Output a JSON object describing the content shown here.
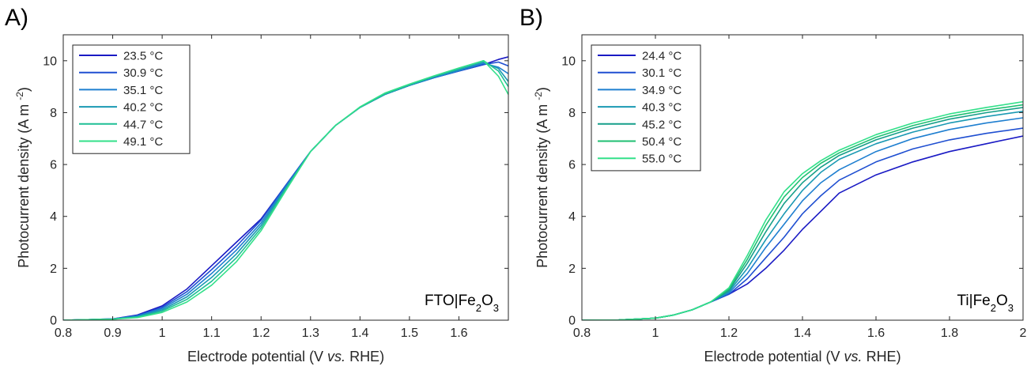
{
  "chart_data": [
    {
      "type": "line",
      "panel_label": "A)",
      "xlabel": "Electrode potential (V vs. RHE)",
      "ylabel": "Photocurrent density (A m-2)",
      "xlim": [
        0.8,
        1.7
      ],
      "ylim": [
        0,
        11
      ],
      "xticks": [
        "0.8",
        "0.9",
        "1",
        "1.1",
        "1.2",
        "1.3",
        "1.4",
        "1.5",
        "1.6"
      ],
      "xtick_values": [
        0.8,
        0.9,
        1.0,
        1.1,
        1.2,
        1.3,
        1.4,
        1.5,
        1.6
      ],
      "yticks": [
        "0",
        "2",
        "4",
        "6",
        "8",
        "10"
      ],
      "ytick_values": [
        0,
        2,
        4,
        6,
        8,
        10
      ],
      "annotation": "FTO|Fe2O3",
      "legend_position": "top-left",
      "grid": false,
      "x": [
        0.8,
        0.85,
        0.9,
        0.95,
        1.0,
        1.05,
        1.1,
        1.15,
        1.2,
        1.25,
        1.3,
        1.35,
        1.4,
        1.45,
        1.5,
        1.55,
        1.6,
        1.65,
        1.68,
        1.7
      ],
      "series": [
        {
          "name": "23.5 °C",
          "color": "#1a1ac4",
          "values": [
            0,
            0.02,
            0.05,
            0.2,
            0.55,
            1.2,
            2.1,
            3.0,
            3.9,
            5.2,
            6.5,
            7.5,
            8.2,
            8.7,
            9.05,
            9.35,
            9.6,
            9.85,
            10.05,
            10.15
          ]
        },
        {
          "name": "30.9 °C",
          "color": "#1f4fd1",
          "values": [
            0,
            0.02,
            0.05,
            0.18,
            0.5,
            1.1,
            1.95,
            2.85,
            3.85,
            5.2,
            6.5,
            7.5,
            8.2,
            8.7,
            9.05,
            9.35,
            9.6,
            9.85,
            9.95,
            9.8
          ]
        },
        {
          "name": "35.1 °C",
          "color": "#1f7fd0",
          "values": [
            0,
            0.02,
            0.05,
            0.16,
            0.45,
            1.0,
            1.8,
            2.7,
            3.75,
            5.15,
            6.5,
            7.5,
            8.2,
            8.7,
            9.05,
            9.35,
            9.62,
            9.9,
            9.75,
            9.5
          ]
        },
        {
          "name": "40.2 °C",
          "color": "#1a99b3",
          "values": [
            0,
            0.02,
            0.04,
            0.14,
            0.4,
            0.9,
            1.65,
            2.55,
            3.65,
            5.1,
            6.5,
            7.5,
            8.2,
            8.7,
            9.05,
            9.38,
            9.65,
            9.95,
            9.7,
            9.2
          ]
        },
        {
          "name": "44.7 °C",
          "color": "#1fbf95",
          "values": [
            0,
            0.02,
            0.04,
            0.12,
            0.35,
            0.8,
            1.5,
            2.4,
            3.55,
            5.05,
            6.5,
            7.5,
            8.2,
            8.72,
            9.08,
            9.4,
            9.7,
            10.0,
            9.6,
            9.0
          ]
        },
        {
          "name": "49.1 °C",
          "color": "#33e08a",
          "values": [
            0,
            0.02,
            0.04,
            0.1,
            0.3,
            0.7,
            1.35,
            2.25,
            3.45,
            5.0,
            6.5,
            7.5,
            8.22,
            8.75,
            9.1,
            9.42,
            9.72,
            10.0,
            9.4,
            8.7
          ]
        }
      ]
    },
    {
      "type": "line",
      "panel_label": "B)",
      "xlabel": "Electrode potential (V vs. RHE)",
      "ylabel": "Photocurrent density (A m-2)",
      "xlim": [
        0.8,
        2.0
      ],
      "ylim": [
        0,
        11
      ],
      "xticks": [
        "0.8",
        "1",
        "1.2",
        "1.4",
        "1.6",
        "1.8",
        "2"
      ],
      "xtick_values": [
        0.8,
        1.0,
        1.2,
        1.4,
        1.6,
        1.8,
        2.0
      ],
      "yticks": [
        "0",
        "2",
        "4",
        "6",
        "8",
        "10"
      ],
      "ytick_values": [
        0,
        2,
        4,
        6,
        8,
        10
      ],
      "annotation": "Ti|Fe2O3",
      "legend_position": "top-left",
      "grid": false,
      "x": [
        0.8,
        0.9,
        1.0,
        1.05,
        1.1,
        1.15,
        1.2,
        1.25,
        1.3,
        1.35,
        1.4,
        1.45,
        1.5,
        1.6,
        1.7,
        1.8,
        1.9,
        2.0
      ],
      "series": [
        {
          "name": "24.4 °C",
          "color": "#1a1ac4",
          "values": [
            0,
            0.01,
            0.08,
            0.2,
            0.4,
            0.7,
            1.0,
            1.4,
            2.0,
            2.7,
            3.5,
            4.2,
            4.9,
            5.6,
            6.1,
            6.5,
            6.8,
            7.1
          ]
        },
        {
          "name": "30.1 °C",
          "color": "#1f4fd1",
          "values": [
            0,
            0.01,
            0.08,
            0.2,
            0.4,
            0.7,
            1.0,
            1.6,
            2.4,
            3.2,
            4.1,
            4.8,
            5.4,
            6.1,
            6.6,
            6.95,
            7.2,
            7.4
          ]
        },
        {
          "name": "34.9 °C",
          "color": "#1f7fd0",
          "values": [
            0,
            0.01,
            0.08,
            0.2,
            0.4,
            0.7,
            1.05,
            1.8,
            2.8,
            3.7,
            4.6,
            5.3,
            5.8,
            6.5,
            7.0,
            7.35,
            7.6,
            7.8
          ]
        },
        {
          "name": "40.3 °C",
          "color": "#1a99b3",
          "values": [
            0,
            0.01,
            0.08,
            0.2,
            0.4,
            0.7,
            1.1,
            2.0,
            3.1,
            4.1,
            5.0,
            5.7,
            6.2,
            6.8,
            7.25,
            7.6,
            7.85,
            8.05
          ]
        },
        {
          "name": "45.2 °C",
          "color": "#179f8a",
          "values": [
            0,
            0.01,
            0.08,
            0.2,
            0.4,
            0.7,
            1.15,
            2.2,
            3.4,
            4.5,
            5.3,
            5.9,
            6.35,
            6.95,
            7.4,
            7.75,
            8.0,
            8.2
          ]
        },
        {
          "name": "50.4 °C",
          "color": "#1fbf72",
          "values": [
            0,
            0.01,
            0.08,
            0.2,
            0.4,
            0.7,
            1.2,
            2.35,
            3.65,
            4.75,
            5.5,
            6.05,
            6.45,
            7.05,
            7.5,
            7.85,
            8.1,
            8.3
          ]
        },
        {
          "name": "55.0 °C",
          "color": "#33e08a",
          "values": [
            0,
            0.01,
            0.08,
            0.2,
            0.4,
            0.7,
            1.25,
            2.5,
            3.85,
            4.95,
            5.65,
            6.15,
            6.55,
            7.15,
            7.6,
            7.95,
            8.2,
            8.42
          ]
        }
      ]
    }
  ]
}
